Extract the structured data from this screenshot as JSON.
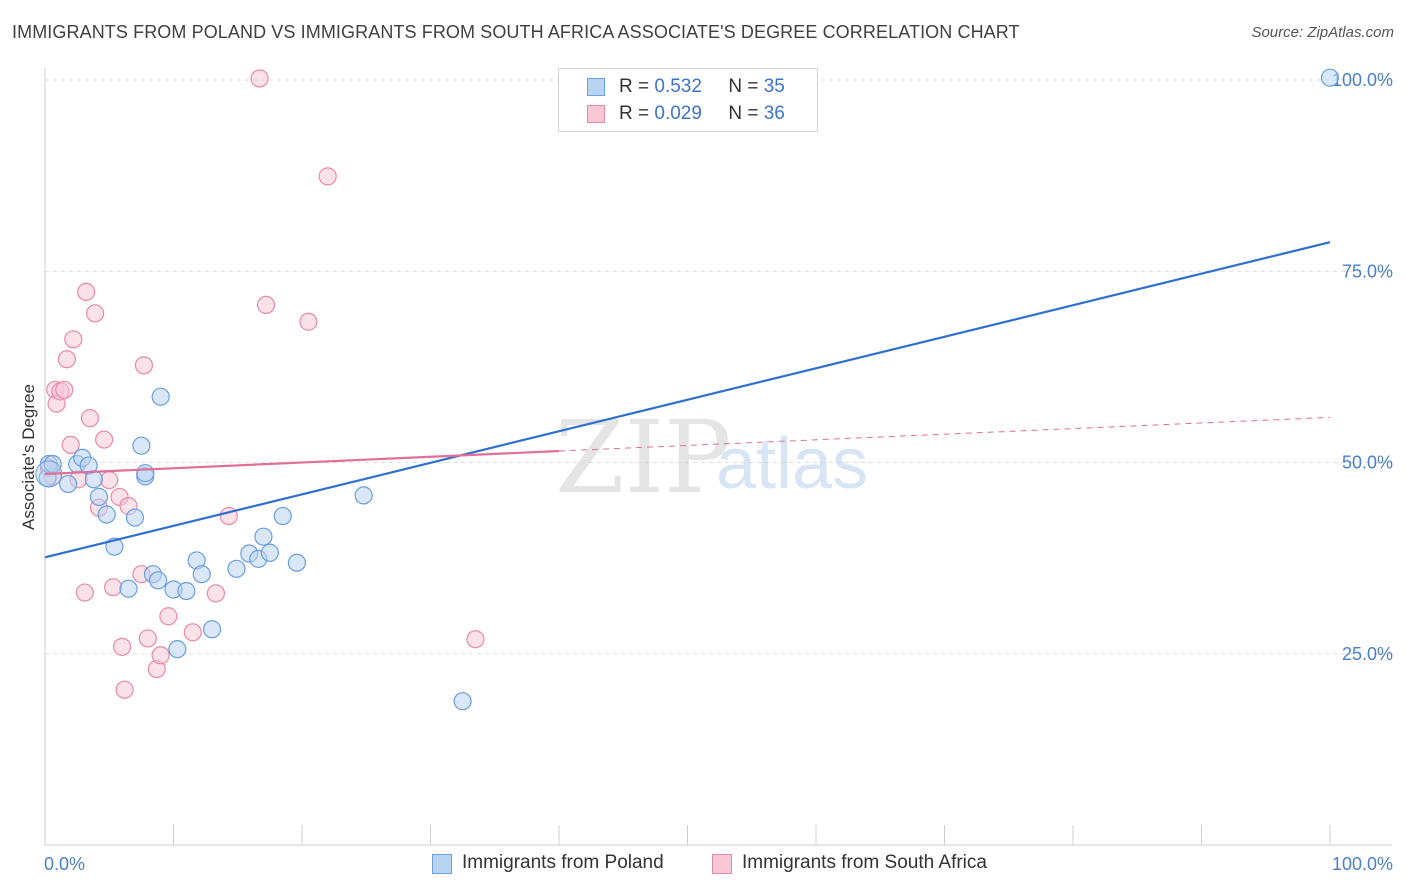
{
  "title": "IMMIGRANTS FROM POLAND VS IMMIGRANTS FROM SOUTH AFRICA ASSOCIATE'S DEGREE CORRELATION CHART",
  "source": "Source: ZipAtlas.com",
  "watermark": {
    "zip": "ZIP",
    "atlas": "atlas"
  },
  "legend": {
    "rows": [
      {
        "r_label": "R =",
        "r_value": "0.532",
        "n_label": "N =",
        "n_value": "35"
      },
      {
        "r_label": "R =",
        "r_value": "0.029",
        "n_label": "N =",
        "n_value": "36"
      }
    ]
  },
  "bottom_legend": {
    "poland": "Immigrants from Poland",
    "south_africa": "Immigrants from South Africa"
  },
  "colors": {
    "poland_fill": "#b9d3f2",
    "poland_stroke": "#6a9fe0",
    "poland_line": "#2f6fd0",
    "sa_fill": "#f8c8d6",
    "sa_stroke": "#e88aa8",
    "sa_line": "#e07098",
    "grid": "#dddddd",
    "axis_text": "#4a7fc9"
  },
  "chart_data": {
    "type": "scatter",
    "title": "IMMIGRANTS FROM POLAND VS IMMIGRANTS FROM SOUTH AFRICA ASSOCIATE'S DEGREE CORRELATION CHART",
    "xlabel": "",
    "ylabel": "Associate's Degree",
    "xlim": [
      0,
      100
    ],
    "ylim": [
      0,
      102
    ],
    "x_tick_labels": [
      "0.0%",
      "100.0%"
    ],
    "y_ticks": [
      25,
      50,
      75,
      100
    ],
    "y_tick_labels": [
      "25.0%",
      "50.0%",
      "75.0%",
      "100.0%"
    ],
    "series": [
      {
        "name": "Immigrants from Poland",
        "R": 0.532,
        "N": 35,
        "points": [
          [
            0.2,
            48
          ],
          [
            0.3,
            49.8
          ],
          [
            0.6,
            49.8
          ],
          [
            1.8,
            47.2
          ],
          [
            2.5,
            49.8
          ],
          [
            2.9,
            50.6
          ],
          [
            3.4,
            49.6
          ],
          [
            3.8,
            47.8
          ],
          [
            4.2,
            45.5
          ],
          [
            4.8,
            43.2
          ],
          [
            5.4,
            39
          ],
          [
            6.5,
            33.5
          ],
          [
            7.0,
            42.8
          ],
          [
            7.5,
            52.2
          ],
          [
            7.8,
            48.2
          ],
          [
            7.8,
            48.6
          ],
          [
            8.4,
            35.4
          ],
          [
            8.8,
            34.6
          ],
          [
            9.0,
            58.6
          ],
          [
            10.0,
            33.4
          ],
          [
            10.3,
            25.6
          ],
          [
            11.0,
            33.2
          ],
          [
            11.8,
            37.2
          ],
          [
            12.2,
            35.4
          ],
          [
            13.0,
            28.2
          ],
          [
            14.9,
            36.1
          ],
          [
            15.9,
            38.1
          ],
          [
            16.6,
            37.4
          ],
          [
            17.0,
            40.3
          ],
          [
            17.5,
            38.2
          ],
          [
            18.5,
            43
          ],
          [
            19.6,
            36.9
          ],
          [
            24.8,
            45.7
          ],
          [
            32.5,
            18.8
          ],
          [
            100,
            100.3
          ]
        ],
        "trend": {
          "x": [
            0,
            100
          ],
          "y": [
            37.6,
            78.8
          ]
        }
      },
      {
        "name": "Immigrants from South Africa",
        "R": 0.029,
        "N": 36,
        "points": [
          [
            0.3,
            49.3
          ],
          [
            0.6,
            48.2
          ],
          [
            0.8,
            59.5
          ],
          [
            0.9,
            57.7
          ],
          [
            1.2,
            59.3
          ],
          [
            1.5,
            59.5
          ],
          [
            1.7,
            63.5
          ],
          [
            2.0,
            52.3
          ],
          [
            2.2,
            66.1
          ],
          [
            2.6,
            47.8
          ],
          [
            3.1,
            33
          ],
          [
            3.2,
            72.3
          ],
          [
            3.5,
            55.8
          ],
          [
            3.9,
            69.5
          ],
          [
            4.2,
            44.1
          ],
          [
            4.6,
            53
          ],
          [
            5.0,
            47.7
          ],
          [
            5.3,
            33.7
          ],
          [
            5.8,
            45.5
          ],
          [
            6.0,
            25.9
          ],
          [
            6.2,
            20.3
          ],
          [
            6.5,
            44.3
          ],
          [
            7.5,
            35.4
          ],
          [
            7.7,
            62.7
          ],
          [
            8.0,
            27
          ],
          [
            8.7,
            23
          ],
          [
            9.0,
            24.8
          ],
          [
            9.6,
            29.9
          ],
          [
            11.5,
            27.8
          ],
          [
            13.3,
            32.9
          ],
          [
            14.3,
            43
          ],
          [
            16.7,
            100.2
          ],
          [
            17.2,
            70.6
          ],
          [
            20.5,
            68.4
          ],
          [
            22.0,
            87.4
          ],
          [
            33.5,
            26.9
          ]
        ],
        "trend": {
          "x": [
            0,
            40
          ],
          "y": [
            48.5,
            51.5
          ]
        },
        "trend_extension": {
          "x": [
            40,
            100
          ],
          "y": [
            51.5,
            55.9
          ]
        }
      }
    ]
  }
}
